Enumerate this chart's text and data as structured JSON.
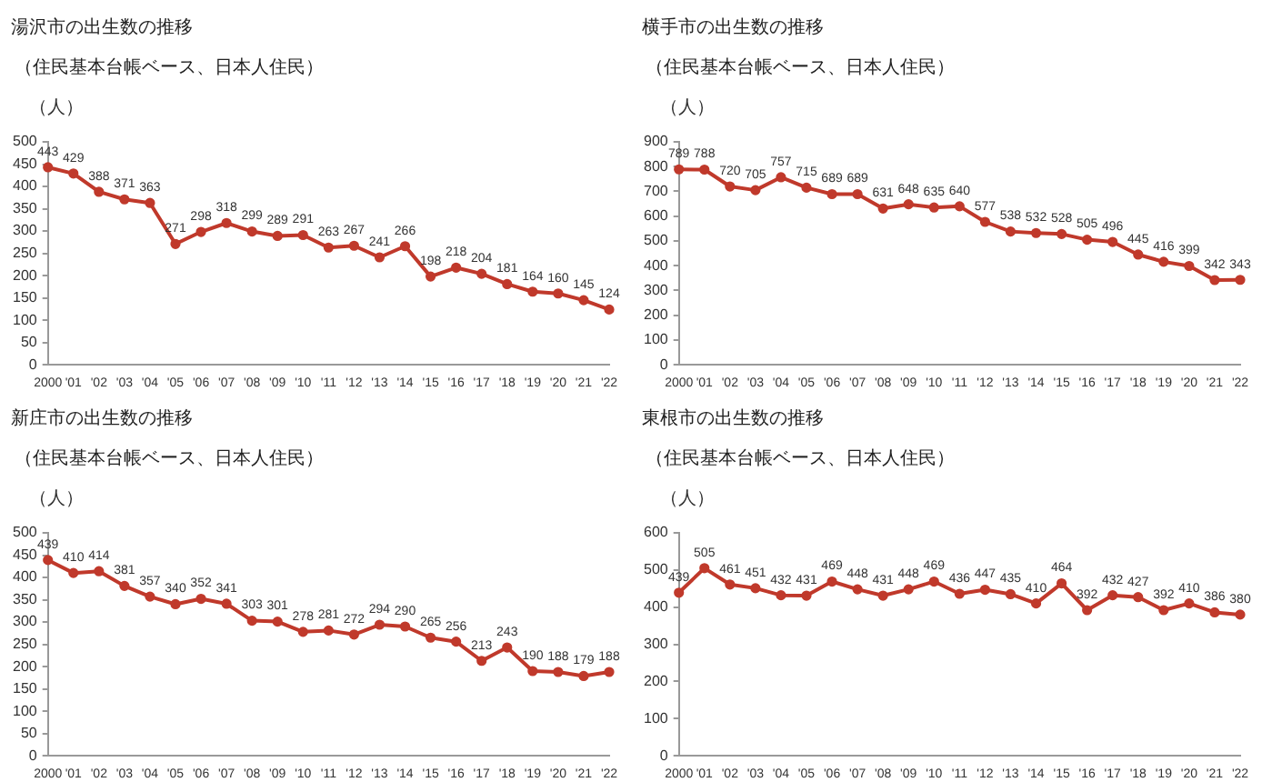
{
  "chart_data": [
    {
      "type": "line",
      "title": "湯沢市の出生数の推移",
      "subtitle": "（住民基本台帳ベース、日本人住民）",
      "ylabel": "（人）",
      "categories": [
        "2000",
        "'01",
        "'02",
        "'03",
        "'04",
        "'05",
        "'06",
        "'07",
        "'08",
        "'09",
        "'10",
        "'11",
        "'12",
        "'13",
        "'14",
        "'15",
        "'16",
        "'17",
        "'18",
        "'19",
        "'20",
        "'21",
        "'22"
      ],
      "series": [
        {
          "color": "#c0392b",
          "values": [
            443,
            429,
            388,
            371,
            363,
            271,
            298,
            318,
            299,
            289,
            291,
            263,
            267,
            241,
            266,
            198,
            218,
            204,
            181,
            164,
            160,
            145,
            124
          ]
        }
      ],
      "ylim": [
        0,
        500
      ],
      "yticks": [
        0,
        50,
        100,
        150,
        200,
        250,
        300,
        350,
        400,
        450,
        500
      ],
      "data_labels": true,
      "grid": false,
      "legend": false,
      "marker": "circle",
      "line_style": "solid"
    },
    {
      "type": "line",
      "title": "横手市の出生数の推移",
      "subtitle": "（住民基本台帳ベース、日本人住民）",
      "ylabel": "（人）",
      "categories": [
        "2000",
        "'01",
        "'02",
        "'03",
        "'04",
        "'05",
        "'06",
        "'07",
        "'08",
        "'09",
        "'10",
        "'11",
        "'12",
        "'13",
        "'14",
        "'15",
        "'16",
        "'17",
        "'18",
        "'19",
        "'20",
        "'21",
        "'22"
      ],
      "series": [
        {
          "color": "#c0392b",
          "values": [
            789,
            788,
            720,
            705,
            757,
            715,
            689,
            689,
            631,
            648,
            635,
            640,
            577,
            538,
            532,
            528,
            505,
            496,
            445,
            416,
            399,
            342,
            343
          ]
        }
      ],
      "ylim": [
        0,
        900
      ],
      "yticks": [
        0,
        100,
        200,
        300,
        400,
        500,
        600,
        700,
        800,
        900
      ],
      "data_labels": true,
      "grid": false,
      "legend": false,
      "marker": "circle",
      "line_style": "solid"
    },
    {
      "type": "line",
      "title": "新庄市の出生数の推移",
      "subtitle": "（住民基本台帳ベース、日本人住民）",
      "ylabel": "（人）",
      "categories": [
        "2000",
        "'01",
        "'02",
        "'03",
        "'04",
        "'05",
        "'06",
        "'07",
        "'08",
        "'09",
        "'10",
        "'11",
        "'12",
        "'13",
        "'14",
        "'15",
        "'16",
        "'17",
        "'18",
        "'19",
        "'20",
        "'21",
        "'22"
      ],
      "series": [
        {
          "color": "#c0392b",
          "values": [
            439,
            410,
            414,
            381,
            357,
            340,
            352,
            341,
            303,
            301,
            278,
            281,
            272,
            294,
            290,
            265,
            256,
            213,
            243,
            190,
            188,
            179,
            188
          ]
        }
      ],
      "ylim": [
        0,
        500
      ],
      "yticks": [
        0,
        50,
        100,
        150,
        200,
        250,
        300,
        350,
        400,
        450,
        500
      ],
      "data_labels": true,
      "grid": false,
      "legend": false,
      "marker": "circle",
      "line_style": "solid"
    },
    {
      "type": "line",
      "title": "東根市の出生数の推移",
      "subtitle": "（住民基本台帳ベース、日本人住民）",
      "ylabel": "（人）",
      "categories": [
        "2000",
        "'01",
        "'02",
        "'03",
        "'04",
        "'05",
        "'06",
        "'07",
        "'08",
        "'09",
        "'10",
        "'11",
        "'12",
        "'13",
        "'14",
        "'15",
        "'16",
        "'17",
        "'18",
        "'19",
        "'20",
        "'21",
        "'22"
      ],
      "series": [
        {
          "color": "#c0392b",
          "values": [
            439,
            505,
            461,
            451,
            432,
            431,
            469,
            448,
            431,
            448,
            469,
            436,
            447,
            435,
            410,
            464,
            392,
            432,
            427,
            392,
            410,
            386,
            380
          ]
        }
      ],
      "ylim": [
        0,
        600
      ],
      "yticks": [
        0,
        100,
        200,
        300,
        400,
        500,
        600
      ],
      "data_labels": true,
      "grid": false,
      "legend": false,
      "marker": "circle",
      "line_style": "solid"
    }
  ]
}
